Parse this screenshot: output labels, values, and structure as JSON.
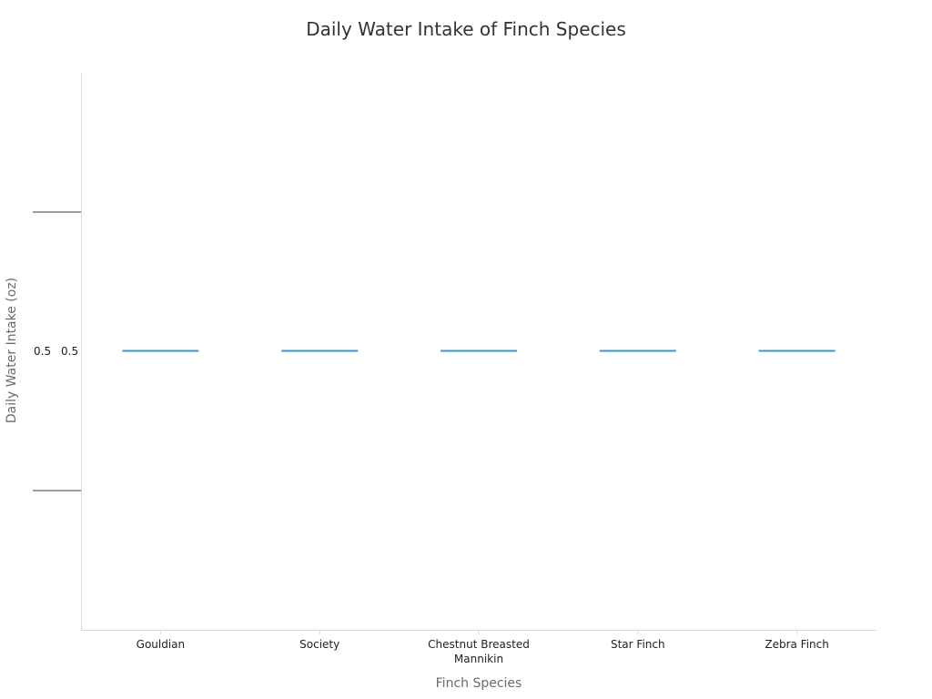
{
  "chart_data": {
    "type": "line",
    "title": "Daily Water Intake of Finch Species",
    "xlabel": "Finch Species",
    "ylabel": "Daily Water Intake (oz)",
    "categories": [
      "Gouldian",
      "Society",
      "Chestnut Breasted Mannikin",
      "Star Finch",
      "Zebra Finch"
    ],
    "category_label_lines": [
      [
        "Gouldian"
      ],
      [
        "Society"
      ],
      [
        "Chestnut Breasted",
        "Mannikin"
      ],
      [
        "Star Finch"
      ],
      [
        "Zebra Finch"
      ]
    ],
    "values": [
      0.5,
      0.5,
      0.5,
      0.5,
      0.5
    ],
    "y_tick_labels": [
      "0.5",
      "0.5"
    ],
    "ylim": [
      0.48,
      0.52
    ],
    "grid": false,
    "legend": "none",
    "colors": {
      "mark": "#3a9ac9",
      "axis": "#d9d9d9",
      "y_tick_mark": "#9e9e9e",
      "title": "#333333",
      "axis_title": "#6b6b6b",
      "tick_text": "#222222"
    }
  }
}
